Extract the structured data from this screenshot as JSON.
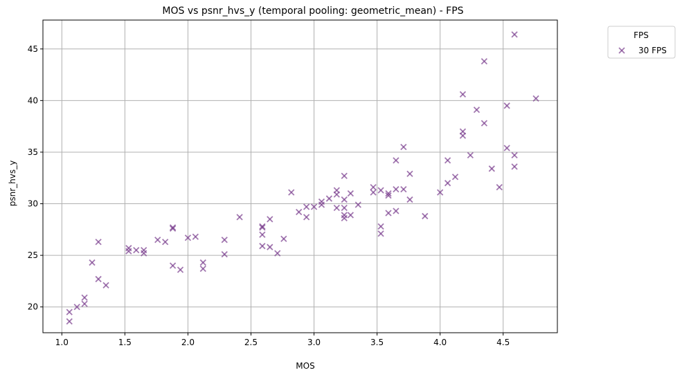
{
  "chart_data": {
    "type": "scatter",
    "title": "MOS vs psnr_hvs_y (temporal pooling: geometric_mean) - FPS",
    "xlabel": "MOS",
    "ylabel": "psnr_hvs_y",
    "xlim": [
      0.85,
      4.93
    ],
    "ylim": [
      17.5,
      47.8
    ],
    "xticks": [
      1.0,
      1.5,
      2.0,
      2.5,
      3.0,
      3.5,
      4.0,
      4.5
    ],
    "xtick_labels": [
      "1.0",
      "1.5",
      "2.0",
      "2.5",
      "3.0",
      "3.5",
      "4.0",
      "4.5"
    ],
    "yticks": [
      20,
      25,
      30,
      35,
      40,
      45
    ],
    "ytick_labels": [
      "20",
      "25",
      "30",
      "35",
      "40",
      "45"
    ],
    "grid": true,
    "legend": {
      "title": "FPS",
      "placement": "outside-top-right"
    },
    "series": [
      {
        "name": "30 FPS",
        "marker": "x",
        "color": "#7b3f8f",
        "points": [
          [
            1.06,
            19.5
          ],
          [
            1.06,
            18.6
          ],
          [
            1.12,
            20.0
          ],
          [
            1.18,
            20.9
          ],
          [
            1.18,
            20.3
          ],
          [
            1.24,
            24.3
          ],
          [
            1.29,
            26.3
          ],
          [
            1.29,
            22.7
          ],
          [
            1.35,
            22.1
          ],
          [
            1.53,
            25.7
          ],
          [
            1.53,
            25.4
          ],
          [
            1.59,
            25.5
          ],
          [
            1.65,
            25.5
          ],
          [
            1.65,
            25.2
          ],
          [
            1.76,
            26.5
          ],
          [
            1.82,
            26.3
          ],
          [
            1.88,
            27.7
          ],
          [
            1.88,
            27.6
          ],
          [
            1.88,
            24.0
          ],
          [
            1.94,
            23.6
          ],
          [
            2.0,
            26.7
          ],
          [
            2.06,
            26.8
          ],
          [
            2.12,
            24.3
          ],
          [
            2.12,
            23.7
          ],
          [
            2.29,
            26.5
          ],
          [
            2.29,
            25.1
          ],
          [
            2.41,
            28.7
          ],
          [
            2.59,
            27.8
          ],
          [
            2.59,
            27.7
          ],
          [
            2.59,
            27.0
          ],
          [
            2.59,
            25.9
          ],
          [
            2.65,
            28.5
          ],
          [
            2.65,
            25.8
          ],
          [
            2.71,
            25.2
          ],
          [
            2.76,
            26.6
          ],
          [
            2.82,
            31.1
          ],
          [
            2.88,
            29.2
          ],
          [
            2.94,
            29.7
          ],
          [
            2.94,
            28.7
          ],
          [
            3.0,
            29.7
          ],
          [
            3.06,
            30.2
          ],
          [
            3.06,
            29.9
          ],
          [
            3.12,
            30.5
          ],
          [
            3.18,
            31.3
          ],
          [
            3.18,
            30.9
          ],
          [
            3.18,
            29.6
          ],
          [
            3.24,
            32.7
          ],
          [
            3.24,
            30.4
          ],
          [
            3.24,
            29.6
          ],
          [
            3.24,
            28.9
          ],
          [
            3.24,
            28.6
          ],
          [
            3.29,
            31.0
          ],
          [
            3.29,
            28.9
          ],
          [
            3.35,
            29.9
          ],
          [
            3.47,
            31.6
          ],
          [
            3.47,
            31.1
          ],
          [
            3.53,
            31.3
          ],
          [
            3.53,
            27.8
          ],
          [
            3.53,
            27.1
          ],
          [
            3.59,
            31.0
          ],
          [
            3.59,
            30.8
          ],
          [
            3.59,
            29.1
          ],
          [
            3.65,
            34.2
          ],
          [
            3.65,
            31.4
          ],
          [
            3.65,
            29.3
          ],
          [
            3.71,
            35.5
          ],
          [
            3.71,
            31.4
          ],
          [
            3.76,
            32.9
          ],
          [
            3.76,
            30.4
          ],
          [
            3.88,
            28.8
          ],
          [
            4.0,
            31.1
          ],
          [
            4.06,
            34.2
          ],
          [
            4.06,
            32.0
          ],
          [
            4.12,
            32.6
          ],
          [
            4.18,
            40.6
          ],
          [
            4.18,
            37.0
          ],
          [
            4.18,
            36.6
          ],
          [
            4.24,
            34.7
          ],
          [
            4.29,
            39.1
          ],
          [
            4.35,
            43.8
          ],
          [
            4.35,
            37.8
          ],
          [
            4.41,
            33.4
          ],
          [
            4.47,
            31.6
          ],
          [
            4.53,
            39.5
          ],
          [
            4.53,
            35.4
          ],
          [
            4.59,
            46.4
          ],
          [
            4.59,
            34.7
          ],
          [
            4.59,
            33.6
          ],
          [
            4.76,
            40.2
          ]
        ]
      }
    ]
  }
}
